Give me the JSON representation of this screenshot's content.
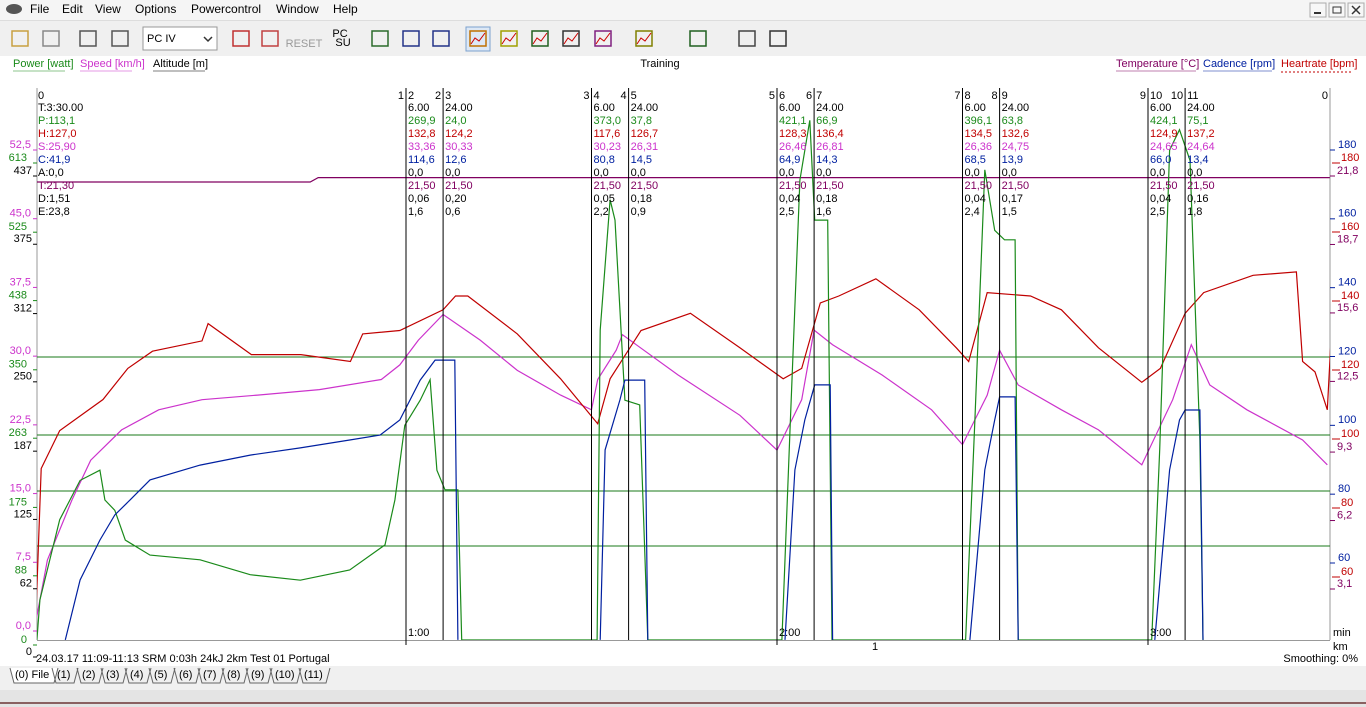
{
  "menu": {
    "items": [
      "File",
      "Edit",
      "View",
      "Options",
      "Powercontrol",
      "Window",
      "Help"
    ]
  },
  "toolbar": {
    "device": "PC IV",
    "reset": "RESET",
    "pc_su": [
      "PC",
      "SU"
    ]
  },
  "chart": {
    "title": "Training",
    "axes": {
      "power": {
        "label": "Power [watt]",
        "color": "#1a8a1a",
        "ticks": [
          613,
          525,
          438,
          350,
          263,
          175,
          88,
          0
        ],
        "x": [
          0.3,
          0.8,
          4.0,
          7.3,
          10.5,
          11.3,
          12.9,
          14.6,
          18.6,
          26.7,
          34.8,
          42.9,
          50.9,
          56.6,
          58.2,
          59.8,
          62.3,
          63.9,
          65.0,
          66.3,
          68.4,
          69.0,
          90.9,
          91.4,
          93.0,
          93.8,
          95.4,
          97.8,
          99.1,
          120.8,
          122.1,
          123.7,
          125.3,
          126.1,
          128.2,
          128.9,
          150.5,
          152.0,
          153.6,
          155.2,
          156.8,
          158.5,
          159.0,
          180.6,
          181.9,
          183.5,
          185.1,
          186.8,
          188.4,
          188.9
        ],
        "values": [
          0,
          51,
          153,
          203,
          216,
          178,
          165,
          127,
          108,
          102,
          83,
          76,
          89,
          121,
          178,
          273,
          305,
          331,
          216,
          191,
          191,
          0,
          0,
          394,
          560,
          534,
          305,
          299,
          0,
          0,
          267,
          585,
          661,
          534,
          534,
          0,
          0,
          280,
          598,
          521,
          509,
          509,
          0,
          0,
          242,
          623,
          649,
          610,
          254,
          0
        ]
      },
      "speed": {
        "label": "Speed [km/h]",
        "color": "#cc33cc",
        "ticks": [
          {
            "value": 52.5,
            "label": "52,5"
          },
          {
            "value": 45.0,
            "label": "45,0"
          },
          {
            "value": 37.5,
            "label": "37,5"
          },
          {
            "value": 30.0,
            "label": "30,0"
          },
          {
            "value": 22.5,
            "label": "22,5"
          },
          {
            "value": 15.0,
            "label": "15,0"
          },
          {
            "value": 7.5,
            "label": "7,5"
          },
          {
            "value": 0,
            "label": "0,0"
          }
        ],
        "x": [
          0,
          2,
          6,
          9,
          14,
          20,
          27,
          36,
          46,
          56,
          59,
          62,
          66,
          72,
          78,
          85,
          90,
          91,
          94,
          95,
          104,
          114,
          120,
          124,
          126,
          129,
          137,
          145,
          150,
          154,
          156,
          159,
          166,
          172,
          179,
          184,
          187,
          190,
          196,
          205,
          209
        ],
        "values": [
          0,
          7.2,
          13.8,
          18.1,
          21.4,
          23.6,
          24.7,
          25.2,
          25.8,
          26.9,
          28.5,
          31.2,
          34.0,
          31.2,
          27.9,
          25.2,
          23.6,
          26.9,
          30.1,
          31.8,
          27.4,
          23.0,
          19.2,
          24.7,
          32.3,
          30.7,
          27.4,
          23.6,
          19.8,
          25.2,
          30.1,
          26.3,
          23.6,
          21.4,
          17.6,
          24.7,
          30.7,
          26.3,
          23.6,
          20.3,
          17.6
        ]
      },
      "altitude": {
        "label": "Altitude [m]",
        "color": "#000000",
        "ticks": [
          437,
          375,
          312,
          250,
          187,
          125,
          62,
          0
        ]
      },
      "temperature": {
        "label": "Temperature [°C]",
        "color": "#800060",
        "ticks": [
          {
            "value": 21.8,
            "label": "21,8"
          },
          {
            "value": 18.7,
            "label": "18,7"
          },
          {
            "value": 15.6,
            "label": "15,6"
          },
          {
            "value": 12.5,
            "label": "12,5"
          },
          {
            "value": 9.3,
            "label": "9,3"
          },
          {
            "value": 6.2,
            "label": "6,2"
          },
          {
            "value": 3.1,
            "label": "3,1"
          }
        ],
        "x": [
          0.3,
          44.5,
          45.8,
          209.4
        ],
        "values": [
          21.3,
          21.3,
          21.5,
          21.5
        ]
      },
      "cadence": {
        "label": "Cadence [rpm]",
        "color": "#0020a0",
        "ticks": [
          180,
          160,
          140,
          120,
          100,
          80,
          60
        ],
        "x": [
          4.9,
          7.3,
          10.5,
          12.9,
          15.4,
          18.6,
          26.7,
          34.8,
          42.9,
          50.9,
          55.8,
          59.0,
          62.3,
          64.7,
          67.9,
          68.4,
          80,
          91.4,
          92.2,
          94.6,
          95.4,
          98.6,
          99.1,
          110,
          121.3,
          122.9,
          124.5,
          126.1,
          128.6,
          129.0,
          140,
          151.2,
          153.6,
          155.2,
          156.0,
          158.5,
          159.0,
          170,
          181.1,
          183.5,
          185.1,
          186.0,
          188.4,
          188.9
        ],
        "values": [
          36.2,
          53.6,
          65.2,
          72.5,
          76.9,
          82.7,
          87.0,
          89.9,
          92.0,
          94.3,
          95.7,
          100.1,
          111.7,
          117.5,
          117.5,
          36.2,
          null,
          36.2,
          91.4,
          105.9,
          111.7,
          111.7,
          36.2,
          null,
          36.2,
          85.6,
          100.1,
          110.3,
          110.3,
          36.2,
          null,
          36.2,
          85.6,
          100.1,
          106.8,
          106.8,
          36.2,
          null,
          36.2,
          85.6,
          100.1,
          103.0,
          103.0,
          36.2
        ]
      },
      "heartrate": {
        "label": "Heartrate [bpm]",
        "color": "#c00000",
        "ticks": [
          180,
          160,
          140,
          120,
          100,
          80,
          60
        ],
        "x": [
          0,
          1,
          4,
          11,
          15,
          19,
          27,
          28,
          35,
          43,
          51,
          53,
          59,
          66,
          68,
          70,
          78,
          85,
          91,
          93,
          98,
          106,
          114,
          121,
          124,
          127,
          130,
          136,
          143,
          149,
          151,
          154,
          161,
          166,
          172,
          179,
          182,
          186,
          189,
          197,
          204,
          205,
          207,
          209,
          210
        ],
        "values": [
          40,
          90,
          101,
          110,
          119,
          124,
          127,
          132,
          123,
          123,
          121,
          129,
          130,
          136,
          140,
          140,
          129,
          116,
          103,
          116,
          130,
          135,
          125,
          116,
          119,
          138,
          140,
          145,
          136,
          125,
          121,
          141,
          140,
          136,
          125,
          115,
          119,
          135,
          141,
          146,
          147,
          121,
          118,
          107,
          141
        ]
      }
    },
    "start_label": "0",
    "end_label": "0",
    "overall": [
      "T:3:30.00",
      "P:113,1",
      "H:127,0",
      "S:25,90",
      "C:41,9",
      "A:0,0",
      "T:21,30",
      "D:1,51",
      "E:23,8"
    ],
    "boundaries": [
      {
        "time": 60,
        "left": "1",
        "right": "2",
        "stats": [
          "6.00",
          "269,9",
          "132,8",
          "33,36",
          "114,6",
          "0,0",
          "21,50",
          "0,06",
          "1,6"
        ]
      },
      {
        "time": 66,
        "left": "2",
        "right": "3",
        "stats": [
          "24.00",
          "24,0",
          "124,2",
          "30,33",
          "12,6",
          "0,0",
          "21,50",
          "0,20",
          "0,6"
        ]
      },
      {
        "time": 90,
        "left": "3",
        "right": "4",
        "stats": [
          "6.00",
          "373,0",
          "117,6",
          "30,23",
          "80,8",
          "0,0",
          "21,50",
          "0,05",
          "2,2"
        ]
      },
      {
        "time": 96,
        "left": "4",
        "right": "5",
        "stats": [
          "24.00",
          "37,8",
          "126,7",
          "26,31",
          "14,5",
          "0,0",
          "21,50",
          "0,18",
          "0,9"
        ]
      },
      {
        "time": 120,
        "left": "5",
        "right": "6",
        "stats": [
          "6.00",
          "421,1",
          "128,3",
          "26,46",
          "64,9",
          "0,0",
          "21,50",
          "0,04",
          "2,5"
        ]
      },
      {
        "time": 126,
        "left": "6",
        "right": "7",
        "stats": [
          "24.00",
          "66,9",
          "136,4",
          "26,81",
          "14,3",
          "0,0",
          "21,50",
          "0,18",
          "1,6"
        ]
      },
      {
        "time": 150,
        "left": "7",
        "right": "8",
        "stats": [
          "6.00",
          "396,1",
          "134,5",
          "26,36",
          "68,5",
          "0,0",
          "21,50",
          "0,04",
          "2,4"
        ]
      },
      {
        "time": 156,
        "left": "8",
        "right": "9",
        "stats": [
          "24.00",
          "63,8",
          "132,6",
          "24,75",
          "13,9",
          "0,0",
          "21,50",
          "0,17",
          "1,5"
        ]
      },
      {
        "time": 180,
        "left": "9",
        "right": "10",
        "stats": [
          "6.00",
          "424,1",
          "124,9",
          "24,65",
          "66,0",
          "0,0",
          "21,50",
          "0,04",
          "2,5"
        ]
      },
      {
        "time": 186,
        "left": "10",
        "right": "11",
        "stats": [
          "24.00",
          "75,1",
          "137,2",
          "24,64",
          "13,4",
          "0,0",
          "21,50",
          "0,16",
          "1,8"
        ]
      }
    ],
    "time_axis": {
      "ticks": [
        {
          "value": 60,
          "label": "1:00"
        },
        {
          "value": 120,
          "label": "2:00"
        },
        {
          "value": 180,
          "label": "3:00"
        }
      ],
      "unit": "min"
    },
    "distance_axis": {
      "ticks": [
        1
      ],
      "unit": "km"
    }
  },
  "status": {
    "info": "24.03.17 11:09-11:13 SRM 0:03h 24kJ 2km Test 01 Portugal",
    "smoothing": "Smoothing: 0%"
  },
  "tabs": [
    "(0) File",
    "(1)",
    "(2)",
    "(3)",
    "(4)",
    "(5)",
    "(6)",
    "(7)",
    "(8)",
    "(9)",
    "(10)",
    "(11)"
  ]
}
